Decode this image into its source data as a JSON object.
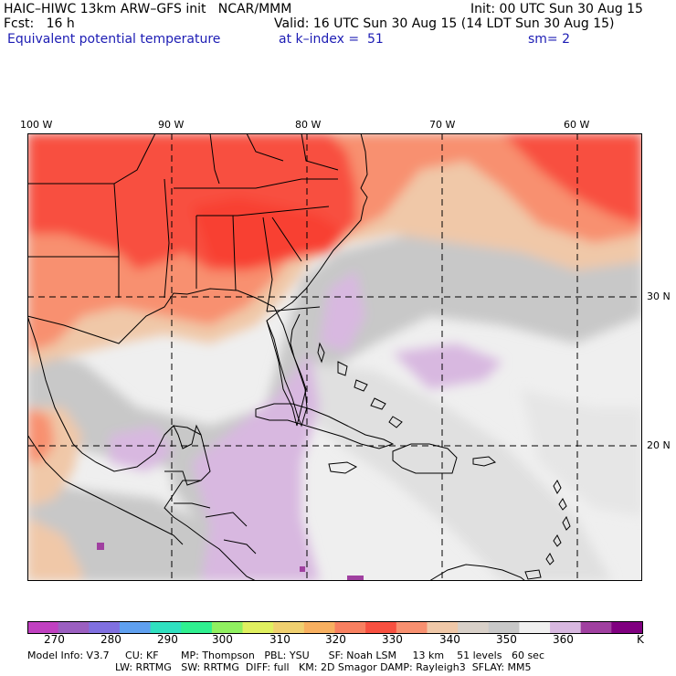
{
  "header": {
    "model_line": "HAIC–HIWC 13km ARW–GFS init   NCAR/MMM",
    "init_line": "Init: 00 UTC Sun 30 Aug 15",
    "forecast_line": "Fcst:   16 h",
    "valid_line": "Valid: 16 UTC Sun 30 Aug 15 (14 LDT Sun 30 Aug 15)",
    "field_name": "Equivalent potential temperature",
    "level": "at k–index =  51",
    "smoothing": "sm= 2"
  },
  "map": {
    "lon_labels": [
      "100 W",
      "90 W",
      "80 W",
      "70 W",
      "60 W"
    ],
    "lat_labels": [
      "30 N",
      "20 N"
    ]
  },
  "colorbar": {
    "labels": [
      "270",
      "280",
      "290",
      "300",
      "310",
      "320",
      "330",
      "340",
      "350",
      "360"
    ],
    "unit": "K",
    "colors": [
      "#c040c0",
      "#9b5fc0",
      "#8070e0",
      "#5fa0f0",
      "#30e0c0",
      "#30f090",
      "#90f060",
      "#e0f060",
      "#f0d070",
      "#f8b060",
      "#f88060",
      "#f85040",
      "#f89070",
      "#f0c8a8",
      "#d8d0c8",
      "#c8c8c8",
      "#f0f0f0",
      "#d8b8e0",
      "#a040a0",
      "#800080"
    ]
  },
  "footer": {
    "line1": "Model Info: V3.7     CU: KF       MP: Thompson   PBL: YSU      SF: Noah LSM     13 km    51 levels   60 sec",
    "line2": "LW: RRTMG   SW: RRTMG  DIFF: full   KM: 2D Smagor DAMP: Rayleigh3  SFLAY: MM5"
  }
}
